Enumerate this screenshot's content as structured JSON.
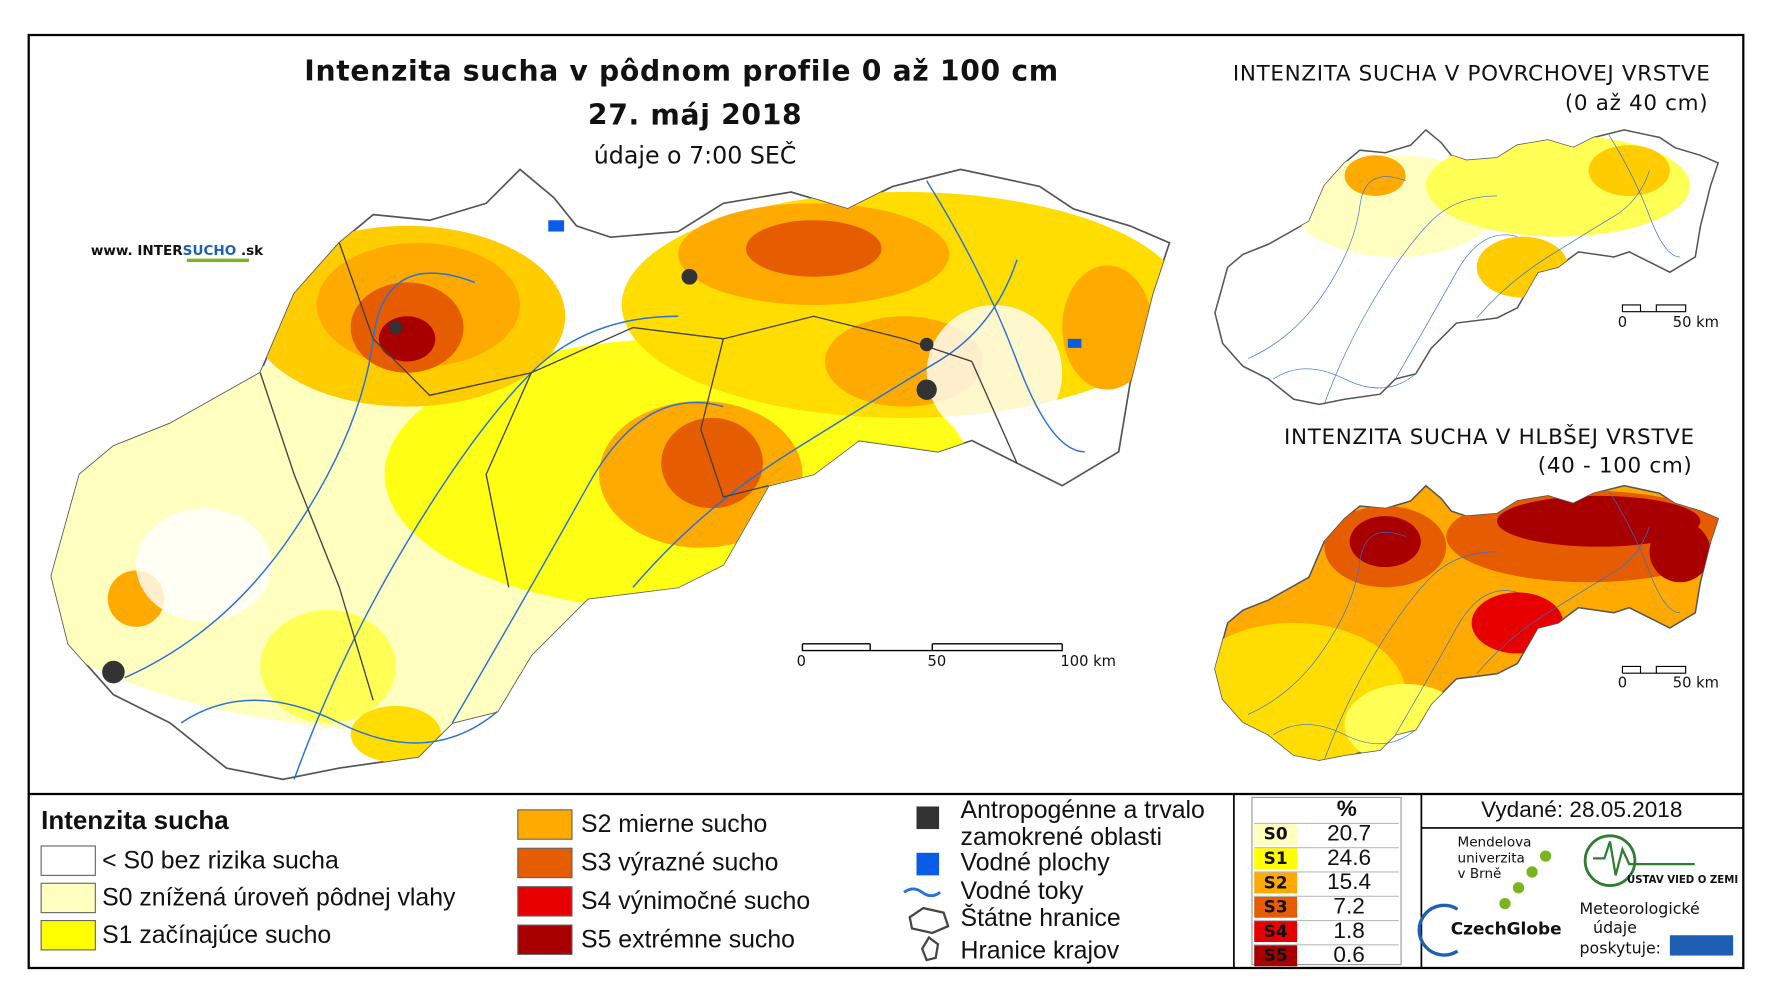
{
  "map": {
    "title": "Intenzita sucha v pôdnom profile 0 až 100 cm",
    "date": "27. máj 2018",
    "data_time": "údaje o 7:00 SEČ",
    "website_prefix": "www. INTER",
    "website_highlight": "SUCHO",
    "website_suffix": " .sk",
    "scale": [
      "0",
      "50",
      "100 km"
    ]
  },
  "inset_surface": {
    "title": "INTENZITA SUCHA V POVRCHOVEJ VRSTVE",
    "subtitle": "(0 až 40 cm)",
    "scale": [
      "0",
      "50 km"
    ]
  },
  "inset_deep": {
    "title": "INTENZITA SUCHA V HLBŠEJ VRSTVE",
    "subtitle": "(40 - 100 cm)",
    "scale": [
      "0",
      "50 km"
    ]
  },
  "legend": {
    "title": "Intenzita sucha",
    "classes": [
      {
        "label": "< S0 bez rizika sucha",
        "color": "#ffffff"
      },
      {
        "label": "S0 znížená úroveň pôdnej vlahy",
        "color": "#ffffc0"
      },
      {
        "label": "S1 začínajúce sucho",
        "color": "#ffff00"
      },
      {
        "label": "S2 mierne sucho",
        "color": "#ffaa00"
      },
      {
        "label": "S3 výrazné sucho",
        "color": "#e65c00"
      },
      {
        "label": "S4 výnimočné sucho",
        "color": "#e60000"
      },
      {
        "label": "S5 extrémne sucho",
        "color": "#a80000"
      }
    ],
    "layers": [
      {
        "label": "Antropogénne a trvalo zamokrené oblasti",
        "color": "#333333"
      },
      {
        "label": "Vodné plochy",
        "color": "#0a5ce6"
      },
      {
        "label": "Vodné toky",
        "color": "#2a72d8"
      },
      {
        "label": "Štátne hranice",
        "color": "#444444"
      },
      {
        "label": "Hranice krajov",
        "color": "#444444"
      }
    ]
  },
  "table": {
    "header": "%",
    "rows": [
      {
        "code": "S0",
        "percent": "20.7",
        "color": "#ffffc0"
      },
      {
        "code": "S1",
        "percent": "24.6",
        "color": "#ffff00"
      },
      {
        "code": "S2",
        "percent": "15.4",
        "color": "#ffaa00"
      },
      {
        "code": "S3",
        "percent": "7.2",
        "color": "#e65c00"
      },
      {
        "code": "S4",
        "percent": "1.8",
        "color": "#e60000"
      },
      {
        "code": "S5",
        "percent": "0.6",
        "color": "#a80000"
      }
    ]
  },
  "issued": "Vydané: 28.05.2018",
  "logos": {
    "mendel": [
      "Mendelova",
      "univerzita",
      "v Brně"
    ],
    "czechglobe": "CzechGlobe",
    "ustav": "ÚSTAV VIED O ZEMI",
    "shmu_note": [
      "Meteorologické",
      "údaje",
      "poskytuje:"
    ]
  }
}
